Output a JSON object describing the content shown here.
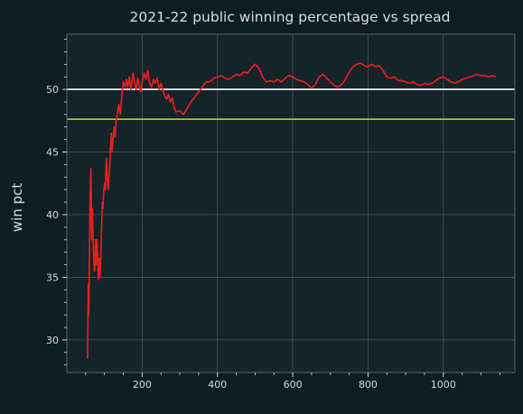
{
  "colors": {
    "page_background": "#0e1c23",
    "plot_background": "#15232a",
    "grid": "#56656c",
    "axis_text": "#d8dde0",
    "series_line": "#e4201f",
    "reference_50": "#ffffff",
    "reference_break_even": "#c6c71a"
  },
  "chart_data": {
    "type": "line",
    "title": "2021-22 public winning percentage vs spread",
    "xlabel": "",
    "ylabel": "win pct",
    "xlim": [
      0,
      1190
    ],
    "ylim": [
      27.4,
      54.4
    ],
    "x_ticks": [
      200,
      400,
      600,
      800,
      1000
    ],
    "y_ticks": [
      30,
      35,
      40,
      45,
      50
    ],
    "x_minor_step": 50,
    "y_minor_step": 1,
    "grid": true,
    "legend": "none",
    "reference_lines": [
      {
        "y": 50.0,
        "color": "#ffffff"
      },
      {
        "y": 47.62,
        "color": "#c6c71a"
      }
    ],
    "series": [
      {
        "color": "#e4201f",
        "x": [
          55,
          57,
          58,
          60,
          62,
          64,
          66,
          68,
          70,
          72,
          74,
          76,
          78,
          80,
          82,
          84,
          86,
          88,
          90,
          92,
          94,
          96,
          98,
          100,
          102,
          105,
          108,
          110,
          114,
          118,
          120,
          123,
          126,
          128,
          131,
          134,
          138,
          142,
          146,
          150,
          154,
          158,
          162,
          166,
          170,
          176,
          180,
          184,
          188,
          192,
          196,
          200,
          205,
          210,
          215,
          220,
          225,
          230,
          235,
          240,
          245,
          250,
          255,
          260,
          265,
          270,
          275,
          280,
          285,
          290,
          300,
          310,
          320,
          330,
          340,
          350,
          360,
          370,
          380,
          390,
          400,
          410,
          420,
          430,
          440,
          450,
          460,
          470,
          480,
          490,
          500,
          510,
          520,
          530,
          540,
          550,
          560,
          570,
          580,
          590,
          600,
          610,
          620,
          630,
          640,
          650,
          660,
          670,
          680,
          690,
          700,
          710,
          720,
          730,
          740,
          750,
          760,
          770,
          780,
          790,
          800,
          810,
          820,
          830,
          840,
          850,
          860,
          870,
          880,
          890,
          900,
          910,
          920,
          930,
          940,
          950,
          960,
          970,
          980,
          990,
          1000,
          1010,
          1020,
          1030,
          1040,
          1050,
          1060,
          1070,
          1080,
          1090,
          1100,
          1110,
          1120,
          1130,
          1140
        ],
        "values": [
          28.5,
          34.5,
          32.0,
          36.5,
          41.5,
          43.7,
          38.0,
          40.5,
          37.5,
          36.0,
          35.5,
          38.0,
          36.0,
          38.0,
          36.5,
          34.8,
          36.5,
          35.0,
          36.5,
          38.5,
          41.0,
          40.5,
          41.8,
          42.5,
          42.0,
          44.5,
          42.5,
          42.0,
          44.0,
          46.5,
          45.0,
          46.2,
          47.0,
          46.2,
          47.5,
          48.0,
          48.8,
          48.0,
          49.5,
          50.6,
          50.2,
          50.8,
          50.2,
          51.0,
          50.0,
          51.3,
          50.5,
          50.0,
          50.9,
          50.3,
          49.8,
          50.6,
          51.3,
          50.8,
          51.5,
          50.5,
          50.2,
          50.8,
          50.5,
          50.9,
          50.0,
          50.5,
          49.9,
          49.5,
          49.2,
          49.6,
          49.0,
          49.3,
          48.5,
          48.2,
          48.3,
          48.0,
          48.5,
          49.0,
          49.4,
          49.8,
          50.2,
          50.6,
          50.6,
          50.9,
          51.0,
          51.1,
          50.9,
          50.8,
          51.0,
          51.2,
          51.1,
          51.4,
          51.3,
          51.7,
          52.0,
          51.7,
          51.0,
          50.6,
          50.7,
          50.6,
          50.8,
          50.6,
          50.9,
          51.1,
          51.0,
          50.8,
          50.7,
          50.6,
          50.4,
          50.1,
          50.4,
          51.0,
          51.2,
          50.9,
          50.6,
          50.3,
          50.2,
          50.4,
          50.8,
          51.4,
          51.8,
          52.0,
          52.1,
          51.9,
          51.8,
          52.0,
          51.8,
          51.9,
          51.5,
          51.0,
          50.9,
          51.0,
          50.7,
          50.7,
          50.6,
          50.5,
          50.6,
          50.4,
          50.3,
          50.5,
          50.4,
          50.5,
          50.7,
          50.9,
          51.0,
          50.8,
          50.6,
          50.5,
          50.6,
          50.8,
          50.9,
          51.0,
          51.1,
          51.2,
          51.1,
          51.1,
          51.0,
          51.1,
          51.0
        ]
      }
    ]
  }
}
